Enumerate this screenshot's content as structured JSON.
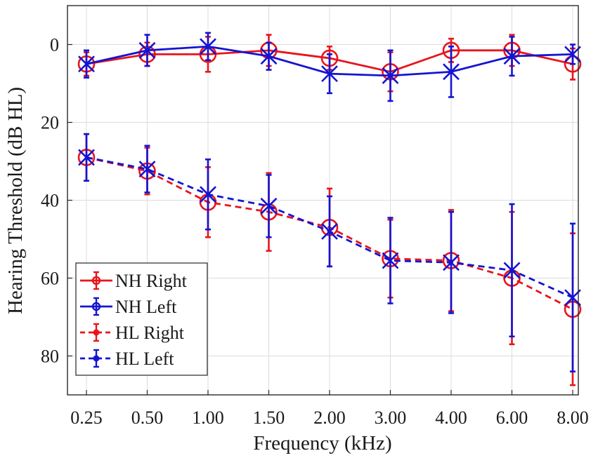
{
  "chart_data": {
    "type": "line",
    "title": "",
    "xlabel": "Frequency (kHz)",
    "ylabel": "Hearing Threshold (dB HL)",
    "categories": [
      "0.25",
      "0.50",
      "1.00",
      "1.50",
      "2.00",
      "3.00",
      "4.00",
      "6.00",
      "8.00"
    ],
    "ylim": [
      -10,
      90
    ],
    "y_reversed": true,
    "yticks": [
      0,
      20,
      40,
      60,
      80
    ],
    "grid": true,
    "legend_position": "bottom-left",
    "series": [
      {
        "name": "NH Right",
        "color": "#e8141c",
        "line_style": "solid",
        "marker": "circle",
        "values": [
          5,
          2.5,
          2.5,
          1.5,
          3.5,
          7,
          1.5,
          1.5,
          5
        ],
        "error": [
          3,
          3,
          4.5,
          4,
          3,
          5,
          3,
          4,
          4
        ]
      },
      {
        "name": "NH Left",
        "color": "#1414d2",
        "line_style": "solid",
        "marker": "x",
        "values": [
          5,
          1.5,
          0.5,
          3,
          7.5,
          8,
          7,
          3,
          2.5
        ],
        "error": [
          3.5,
          4,
          3.5,
          3.5,
          5,
          6.5,
          6.5,
          5,
          2.5
        ]
      },
      {
        "name": "HL Right",
        "color": "#e8141c",
        "line_style": "dashed",
        "marker": "circle",
        "values": [
          29,
          32.5,
          40.5,
          43,
          47,
          55,
          55.5,
          60,
          68
        ],
        "error": [
          6,
          6,
          9,
          10,
          10,
          10,
          13,
          17,
          19.5
        ]
      },
      {
        "name": "HL Left",
        "color": "#1414d2",
        "line_style": "dashed",
        "marker": "x",
        "values": [
          29,
          32,
          38.5,
          41.5,
          48,
          55.5,
          56,
          58,
          65
        ],
        "error": [
          6,
          6,
          9,
          8,
          9,
          11,
          13,
          17,
          19
        ]
      }
    ]
  }
}
